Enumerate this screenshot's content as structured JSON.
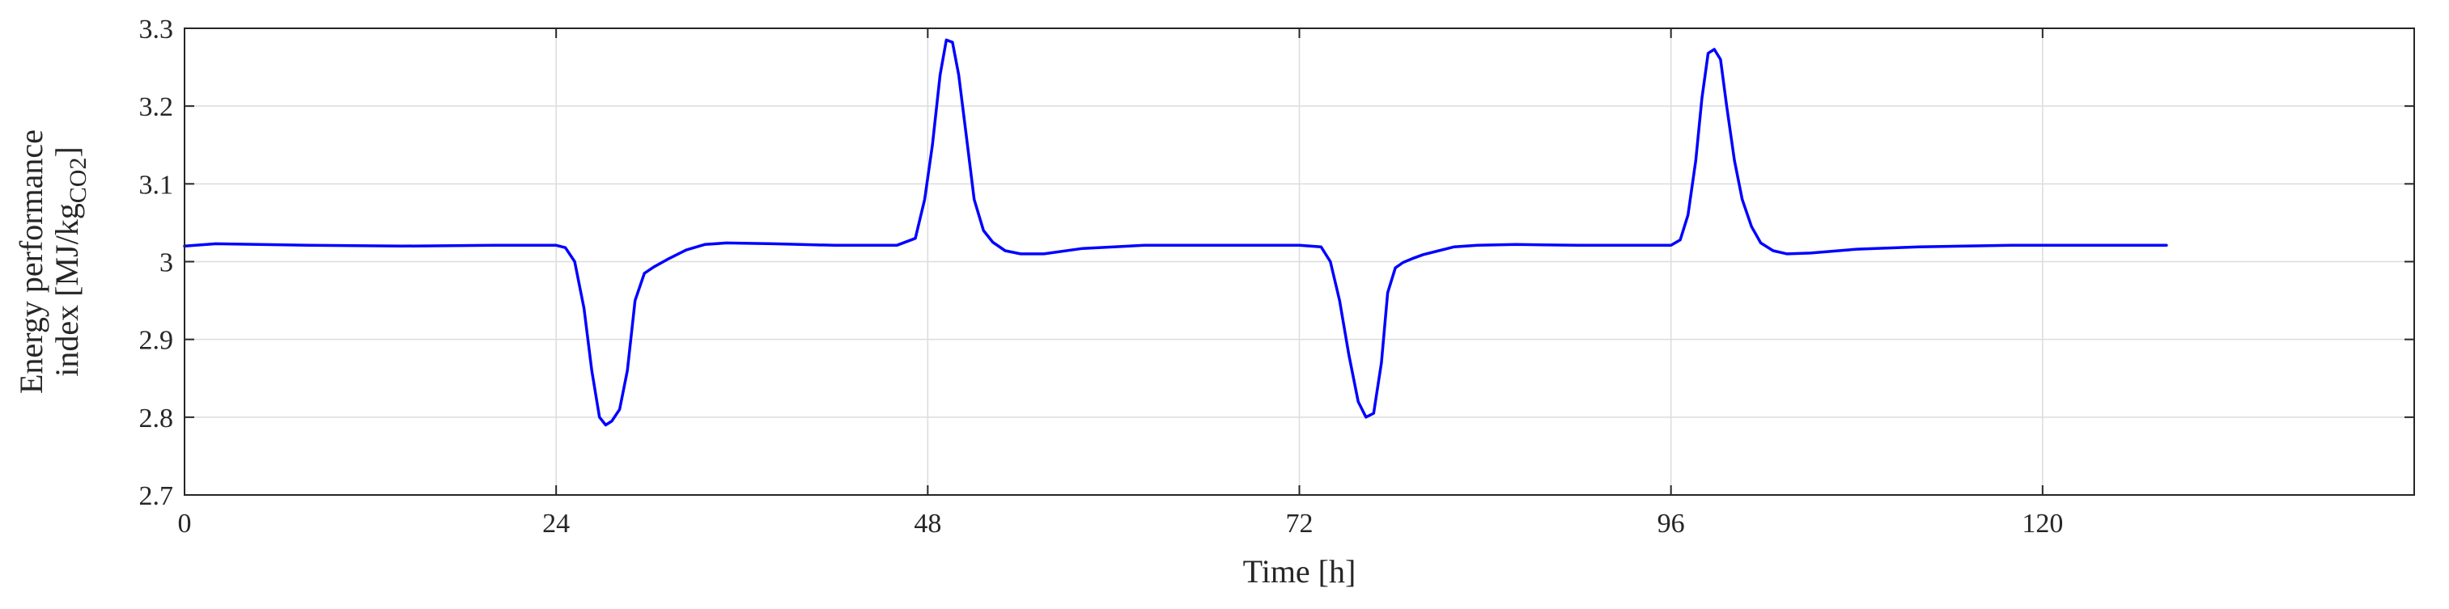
{
  "chart_data": {
    "type": "line",
    "title": "",
    "xlabel": "Time [h]",
    "ylabel": {
      "line1": "Energy performance",
      "line2_prefix": "index [MJ/kg",
      "line2_subscript": "CO2",
      "line2_suffix": "]"
    },
    "xlim": [
      0,
      144
    ],
    "ylim": [
      2.7,
      3.3
    ],
    "xticks": [
      0,
      24,
      48,
      72,
      96,
      120
    ],
    "xtick_labels": [
      "0",
      "24",
      "48",
      "72",
      "96",
      "120"
    ],
    "yticks": [
      2.7,
      2.8,
      2.9,
      3.0,
      3.1,
      3.2,
      3.3
    ],
    "ytick_labels": [
      "2.7",
      "2.8",
      "2.9",
      "3",
      "3.1",
      "3.2",
      "3.3"
    ],
    "grid": true,
    "line_color": "#0000ff",
    "series": [
      {
        "x": [
          0,
          2,
          8,
          14,
          20,
          24,
          24.6,
          25.2,
          25.8,
          26.3,
          26.8,
          27.2,
          27.6,
          28.1,
          28.6,
          29.1,
          29.7,
          30.3,
          31.2,
          32.4,
          33.6,
          35,
          38,
          42,
          46,
          47.2,
          47.8,
          48.3,
          48.8,
          49.2,
          49.6,
          50.0,
          50.5,
          51.0,
          51.6,
          52.2,
          53.0,
          54.0,
          55.5,
          58,
          62,
          66,
          70,
          72,
          73.4,
          74.0,
          74.6,
          75.2,
          75.8,
          76.3,
          76.8,
          77.3,
          77.7,
          78.2,
          78.7,
          79.3,
          80.0,
          81,
          82,
          83.5,
          86,
          90,
          94,
          96.0,
          96.6,
          97.1,
          97.6,
          98.0,
          98.4,
          98.8,
          99.2,
          99.6,
          100.1,
          100.6,
          101.2,
          101.8,
          102.6,
          103.5,
          105,
          108,
          112,
          118,
          124,
          128
        ],
        "y": [
          3.02,
          3.023,
          3.021,
          3.02,
          3.021,
          3.021,
          3.018,
          3.0,
          2.94,
          2.86,
          2.8,
          2.79,
          2.795,
          2.81,
          2.86,
          2.95,
          2.985,
          2.993,
          3.003,
          3.015,
          3.022,
          3.024,
          3.023,
          3.021,
          3.021,
          3.03,
          3.08,
          3.15,
          3.24,
          3.285,
          3.282,
          3.24,
          3.16,
          3.08,
          3.04,
          3.025,
          3.014,
          3.01,
          3.01,
          3.017,
          3.021,
          3.021,
          3.021,
          3.021,
          3.019,
          3.0,
          2.95,
          2.88,
          2.82,
          2.8,
          2.805,
          2.87,
          2.96,
          2.992,
          2.999,
          3.004,
          3.009,
          3.014,
          3.019,
          3.021,
          3.022,
          3.021,
          3.021,
          3.021,
          3.028,
          3.06,
          3.13,
          3.21,
          3.268,
          3.273,
          3.26,
          3.2,
          3.13,
          3.08,
          3.045,
          3.024,
          3.014,
          3.01,
          3.011,
          3.016,
          3.019,
          3.021,
          3.021,
          3.021
        ]
      }
    ]
  }
}
